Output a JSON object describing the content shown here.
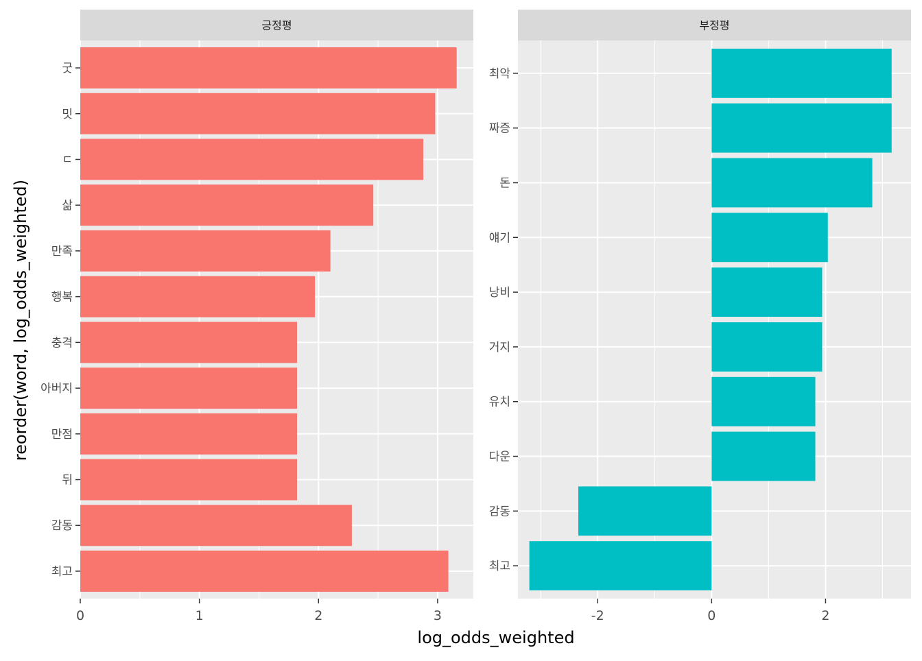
{
  "chart_data": {
    "type": "bar",
    "orientation": "horizontal",
    "xlabel": "log_odds_weighted",
    "ylabel": "reorder(word, log_odds_weighted)",
    "panels": [
      {
        "strip": "긍정평",
        "fill": "#F8766D",
        "xlim": [
          0,
          3.3
        ],
        "xticks": [
          0,
          1,
          2,
          3
        ],
        "categories": [
          "굿",
          "밋",
          "ㄷ",
          "삶",
          "만족",
          "행복",
          "충격",
          "아버지",
          "만점",
          "뒤",
          "감동",
          "최고"
        ],
        "values": [
          3.16,
          2.98,
          2.88,
          2.46,
          2.1,
          1.97,
          1.82,
          1.82,
          1.82,
          1.82,
          2.28,
          3.09
        ]
      },
      {
        "strip": "부정평",
        "fill": "#00BFC4",
        "xlim": [
          -3.4,
          3.5
        ],
        "xticks": [
          -2,
          0,
          2
        ],
        "categories": [
          "최악",
          "짜증",
          "돈",
          "얘기",
          "낭비",
          "거지",
          "유치",
          "다운",
          "감동",
          "최고"
        ],
        "values": [
          3.16,
          3.16,
          2.82,
          2.04,
          1.94,
          1.94,
          1.82,
          1.82,
          -2.34,
          -3.2
        ]
      }
    ],
    "grid": true,
    "legend": "none"
  },
  "colors": {
    "panel_background": "#EBEBEB",
    "strip_background": "#D9D9D9",
    "grid_major": "#FFFFFF",
    "axis_text": "#4D4D4D",
    "tick_color": "#333333"
  }
}
